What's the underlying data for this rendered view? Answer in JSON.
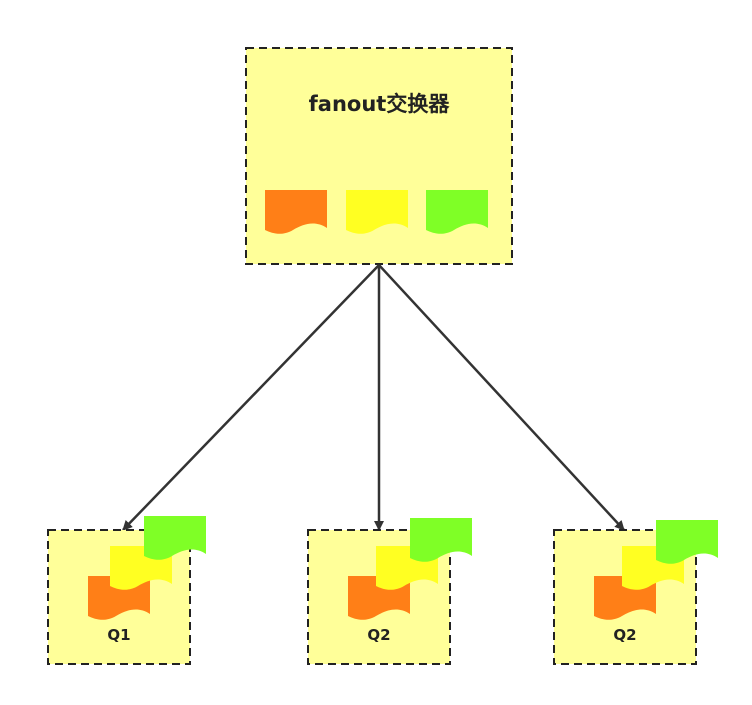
{
  "exchange": {
    "title": "fanout交换器",
    "messages": [
      {
        "color": "#FF7F17"
      },
      {
        "color": "#FFFF22"
      },
      {
        "color": "#7FFF26"
      }
    ],
    "box_fill": "#FFFF99",
    "border_color": "#222222"
  },
  "queues": [
    {
      "label": "Q1"
    },
    {
      "label": "Q2"
    },
    {
      "label": "Q2"
    }
  ],
  "arrow_color": "#333333"
}
